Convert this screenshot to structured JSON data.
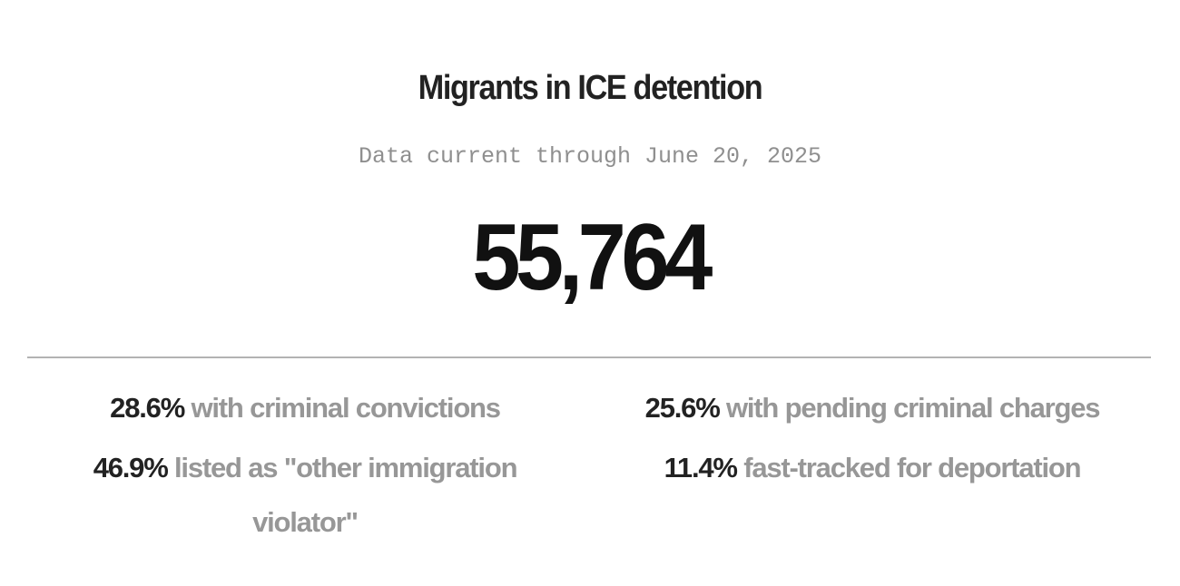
{
  "header": {
    "title": "Migrants in ICE detention",
    "subtitle": "Data current through June 20, 2025"
  },
  "headline": {
    "total": "55,764"
  },
  "stats": [
    {
      "pct": "28.6%",
      "desc": "with criminal convictions"
    },
    {
      "pct": "25.6%",
      "desc": "with pending criminal charges"
    },
    {
      "pct": "46.9%",
      "desc": "listed as \"other immigration violator\""
    },
    {
      "pct": "11.4%",
      "desc": "fast-tracked for deportation"
    }
  ],
  "colors": {
    "title": "#222222",
    "subtitle": "#8f8f8f",
    "number": "#111111",
    "divider": "#b3b3b3",
    "stat_desc": "#979797"
  }
}
